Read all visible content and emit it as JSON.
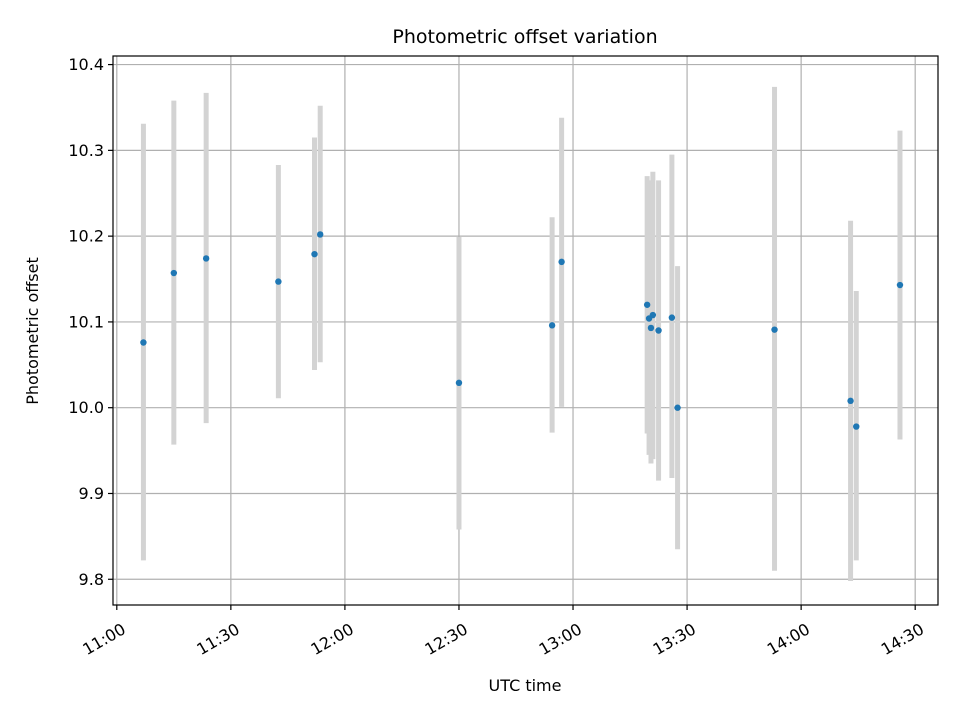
{
  "chart_data": {
    "type": "scatter",
    "title": "Photometric offset variation",
    "xlabel": "UTC time",
    "ylabel": "Photometric offset",
    "x_axis": {
      "kind": "time",
      "range": [
        "10:59",
        "14:36"
      ],
      "ticks": [
        "11:00",
        "11:30",
        "12:00",
        "12:30",
        "13:00",
        "13:30",
        "14:00",
        "14:30"
      ]
    },
    "y_axis": {
      "range": [
        9.77,
        10.41
      ],
      "ticks": [
        "9.8",
        "9.9",
        "10.0",
        "10.1",
        "10.2",
        "10.3",
        "10.4"
      ]
    },
    "grid": true,
    "colors": {
      "point": "#1f77b4",
      "errorbar": "#d3d3d3",
      "grid": "#b0b0b0"
    },
    "points": [
      {
        "time": "11:07",
        "y": 10.076,
        "low": 9.822,
        "high": 10.331
      },
      {
        "time": "11:15",
        "y": 10.157,
        "low": 9.957,
        "high": 10.358
      },
      {
        "time": "11:23:30",
        "y": 10.174,
        "low": 9.982,
        "high": 10.367
      },
      {
        "time": "11:42:30",
        "y": 10.147,
        "low": 10.011,
        "high": 10.283
      },
      {
        "time": "11:52",
        "y": 10.179,
        "low": 10.044,
        "high": 10.315
      },
      {
        "time": "11:53:30",
        "y": 10.202,
        "low": 10.053,
        "high": 10.352
      },
      {
        "time": "12:30",
        "y": 10.029,
        "low": 9.858,
        "high": 10.199
      },
      {
        "time": "12:54:30",
        "y": 10.096,
        "low": 9.971,
        "high": 10.222
      },
      {
        "time": "12:57",
        "y": 10.17,
        "low": 10.001,
        "high": 10.338
      },
      {
        "time": "13:19:30",
        "y": 10.12,
        "low": 9.97,
        "high": 10.27
      },
      {
        "time": "13:20",
        "y": 10.104,
        "low": 9.945,
        "high": 10.265
      },
      {
        "time": "13:20:30",
        "y": 10.093,
        "low": 9.935,
        "high": 10.25
      },
      {
        "time": "13:21",
        "y": 10.108,
        "low": 9.94,
        "high": 10.275
      },
      {
        "time": "13:22:30",
        "y": 10.09,
        "low": 9.915,
        "high": 10.265
      },
      {
        "time": "13:26",
        "y": 10.105,
        "low": 9.918,
        "high": 10.295
      },
      {
        "time": "13:27:30",
        "y": 10.0,
        "low": 9.835,
        "high": 10.165
      },
      {
        "time": "13:53",
        "y": 10.091,
        "low": 9.81,
        "high": 10.374
      },
      {
        "time": "14:13",
        "y": 10.008,
        "low": 9.798,
        "high": 10.218
      },
      {
        "time": "14:14:30",
        "y": 9.978,
        "low": 9.822,
        "high": 10.136
      },
      {
        "time": "14:26",
        "y": 10.143,
        "low": 9.963,
        "high": 10.323
      }
    ]
  }
}
